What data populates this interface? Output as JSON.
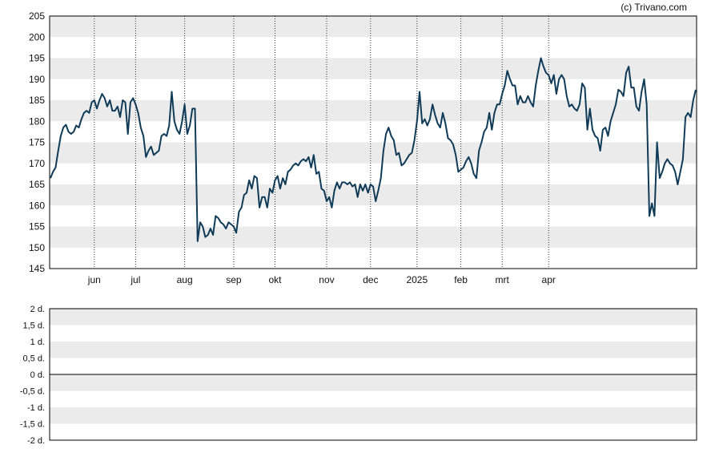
{
  "copyright": "(c) Trivano.com",
  "colors": {
    "line": "#0f3b58",
    "band": "#ebebeb",
    "grid_vertical": "#333333",
    "axis": "#000000",
    "text": "#111111"
  },
  "chart_data": [
    {
      "type": "line",
      "title": "",
      "xlabel": "",
      "ylabel": "",
      "ylim": [
        145,
        205
      ],
      "yticks": [
        "205",
        "200",
        "195",
        "190",
        "185",
        "180",
        "175",
        "170",
        "165",
        "160",
        "155",
        "150",
        "145"
      ],
      "xticks": [
        {
          "label": "jun",
          "index": 17
        },
        {
          "label": "jul",
          "index": 33
        },
        {
          "label": "aug",
          "index": 52
        },
        {
          "label": "sep",
          "index": 71
        },
        {
          "label": "okt",
          "index": 87
        },
        {
          "label": "nov",
          "index": 107
        },
        {
          "label": "dec",
          "index": 124
        },
        {
          "label": "2025",
          "index": 142
        },
        {
          "label": "feb",
          "index": 159
        },
        {
          "label": "mrt",
          "index": 175
        },
        {
          "label": "apr",
          "index": 193
        }
      ],
      "grid": "alternating horizontal bands, dotted vertical lines at month ticks",
      "series": [
        {
          "name": "",
          "values": [
            166.5,
            168.0,
            169.0,
            173.0,
            176.5,
            178.5,
            179.2,
            177.5,
            177.0,
            177.5,
            179.0,
            178.5,
            180.5,
            182.0,
            182.5,
            182.0,
            184.5,
            185.0,
            183.0,
            185.0,
            186.5,
            185.5,
            183.5,
            185.0,
            182.5,
            182.5,
            183.5,
            181.0,
            185.0,
            184.5,
            177.0,
            184.5,
            185.5,
            184.0,
            182.0,
            178.5,
            176.5,
            171.5,
            173.0,
            174.0,
            172.0,
            172.5,
            173.0,
            176.5,
            177.0,
            176.5,
            179.0,
            187.0,
            180.0,
            178.0,
            177.0,
            180.0,
            184.0,
            177.0,
            179.0,
            183.0,
            183.0,
            151.5,
            156.0,
            155.0,
            152.5,
            153.0,
            154.5,
            153.0,
            157.5,
            157.0,
            156.0,
            155.5,
            154.5,
            156.0,
            155.5,
            155.0,
            153.5,
            158.5,
            159.5,
            162.5,
            163.0,
            166.0,
            164.0,
            167.0,
            166.5,
            159.5,
            162.0,
            162.0,
            159.5,
            164.0,
            163.0,
            166.0,
            167.0,
            164.0,
            166.5,
            165.0,
            168.0,
            168.5,
            169.5,
            170.0,
            169.5,
            170.5,
            171.0,
            170.5,
            171.5,
            169.0,
            172.0,
            167.5,
            168.0,
            164.0,
            163.5,
            161.0,
            162.0,
            159.5,
            163.5,
            165.5,
            164.0,
            165.5,
            165.5,
            165.0,
            165.5,
            164.5,
            165.0,
            162.0,
            165.0,
            163.5,
            165.0,
            163.0,
            165.0,
            164.5,
            161.0,
            163.5,
            166.5,
            173.0,
            177.0,
            178.5,
            176.5,
            175.5,
            172.0,
            172.5,
            169.5,
            170.0,
            171.0,
            172.0,
            172.5,
            175.5,
            180.0,
            187.0,
            179.5,
            180.5,
            179.0,
            180.5,
            184.0,
            181.5,
            179.5,
            178.5,
            182.0,
            179.5,
            176.0,
            175.5,
            174.5,
            172.0,
            168.0,
            168.5,
            169.0,
            170.5,
            171.5,
            170.0,
            167.5,
            166.5,
            173.0,
            175.0,
            177.5,
            178.5,
            182.0,
            178.0,
            182.0,
            184.0,
            184.0,
            186.5,
            188.5,
            192.0,
            190.0,
            188.5,
            188.5,
            184.0,
            186.0,
            184.5,
            184.5,
            186.0,
            184.5,
            183.5,
            188.5,
            192.0,
            195.0,
            193.0,
            191.5,
            191.0,
            189.0,
            191.0,
            186.5,
            190.0,
            191.0,
            190.0,
            186.0,
            183.5,
            184.0,
            183.0,
            182.5,
            184.0,
            189.0,
            188.0,
            178.0,
            183.0,
            178.0,
            176.5,
            176.0,
            173.0,
            178.0,
            178.5,
            176.5,
            180.0,
            182.0,
            184.0,
            187.5,
            187.0,
            186.0,
            191.5,
            193.0,
            188.0,
            188.0,
            183.5,
            182.5,
            187.0,
            190.0,
            184.0,
            157.5,
            160.5,
            157.5,
            175.0,
            166.5,
            168.0,
            170.0,
            171.0,
            170.0,
            169.5,
            168.0,
            165.0,
            168.0,
            171.0,
            181.0,
            182.0,
            181.0,
            185.0,
            187.5
          ]
        }
      ]
    },
    {
      "type": "line",
      "title": "",
      "xlabel": "",
      "ylabel": "",
      "ylim": [
        -2,
        2
      ],
      "yticks": [
        "2 d.",
        "1,5 d.",
        "1 d.",
        "0,5 d.",
        "0 d.",
        "-0,5 d.",
        "-1 d.",
        "-1,5 d.",
        "-2 d."
      ],
      "grid": "alternating horizontal bands, baseline at 0",
      "series": []
    }
  ]
}
